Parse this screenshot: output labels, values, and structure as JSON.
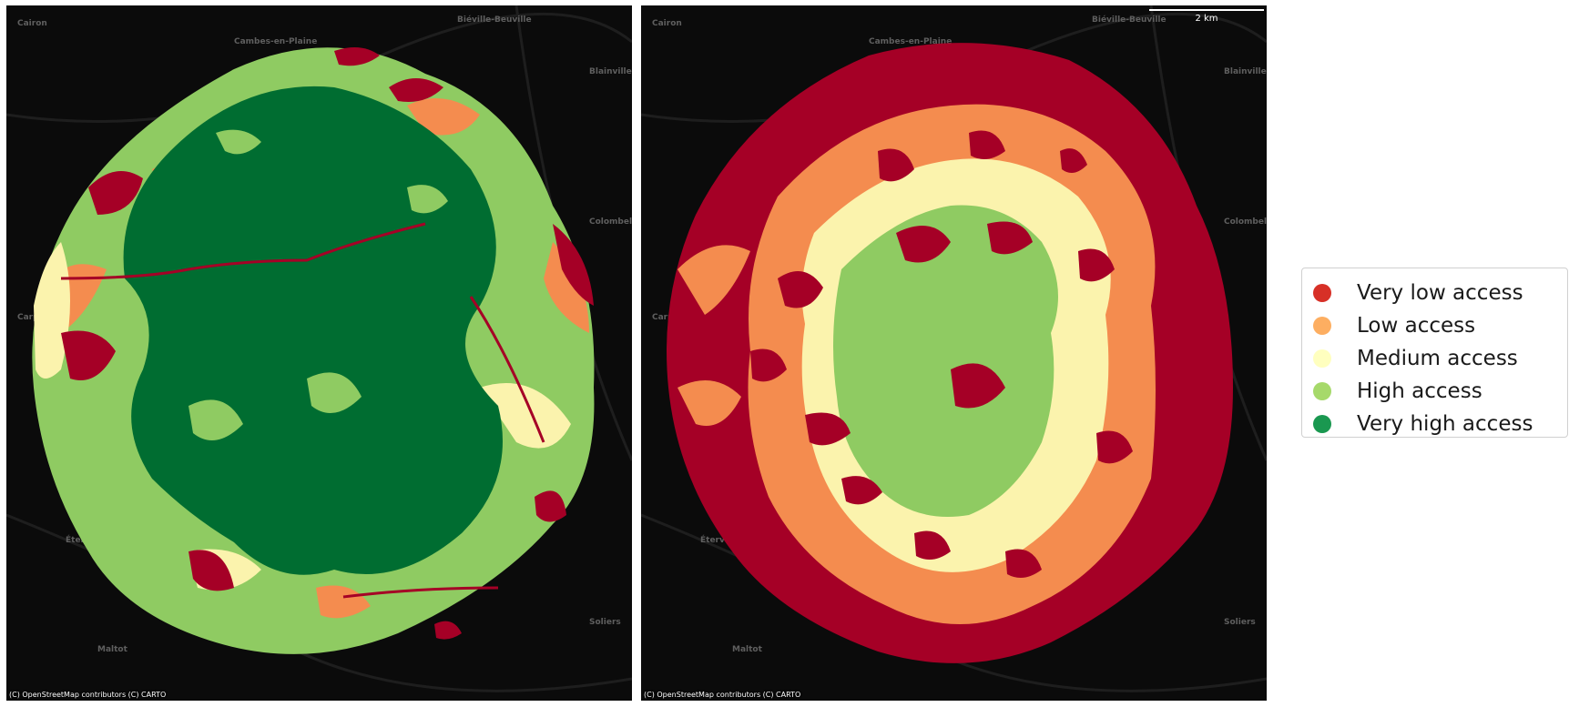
{
  "maps": [
    {
      "id": "left",
      "labels": [
        "Cairon",
        "Cambes-en-Plaine",
        "Biéville-Beuville",
        "Blainville",
        "Colombelles",
        "Carpiquet",
        "Éterville",
        "Maltot",
        "Soliers"
      ],
      "attribution": "(C) OpenStreetMap contributors (C) CARTO"
    },
    {
      "id": "right",
      "labels": [
        "Cairon",
        "Cambes-en-Plaine",
        "Biéville-Beuville",
        "Blainville",
        "Colombelles",
        "Carpiquet",
        "Éterville",
        "Maltot",
        "Soliers"
      ],
      "attribution": "(C) OpenStreetMap contributors (C) CARTO",
      "scalebar_label": "2 km"
    }
  ],
  "legend": {
    "items": [
      {
        "label": "Very low access",
        "color": "#d73027"
      },
      {
        "label": "Low access",
        "color": "#fdae61"
      },
      {
        "label": "Medium access",
        "color": "#ffffbf"
      },
      {
        "label": "High access",
        "color": "#a6d96a"
      },
      {
        "label": "Very high access",
        "color": "#1a9850"
      }
    ]
  },
  "map_colors": {
    "very_low": "#a50026",
    "low": "#f48c4f",
    "medium": "#fbf3ad",
    "high": "#8fcb62",
    "very_high": "#006d31"
  }
}
